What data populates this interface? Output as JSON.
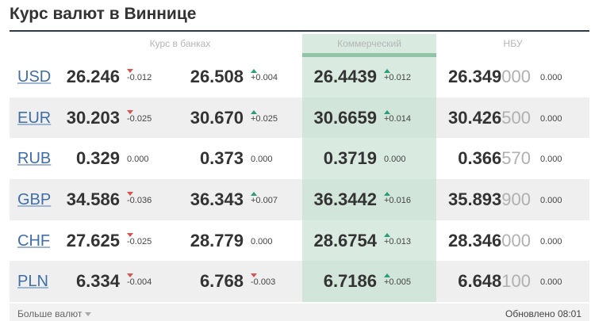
{
  "title": "Курс валют в Виннице",
  "headers": {
    "banks": "Курс в банках",
    "commercial": "Коммерческий",
    "nbu": "НБУ"
  },
  "rows": [
    {
      "code": "USD",
      "buy": "26.246",
      "buy_delta": "-0.012",
      "buy_dir": "down",
      "sell": "26.508",
      "sell_delta": "+0.004",
      "sell_dir": "up",
      "comm": "26.4439",
      "comm_delta": "+0.012",
      "comm_dir": "up",
      "nbu_main": "26.349",
      "nbu_tail": "000",
      "nbu_delta": "0.000"
    },
    {
      "code": "EUR",
      "buy": "30.203",
      "buy_delta": "-0.025",
      "buy_dir": "down",
      "sell": "30.670",
      "sell_delta": "+0.025",
      "sell_dir": "up",
      "comm": "30.6659",
      "comm_delta": "+0.014",
      "comm_dir": "up",
      "nbu_main": "30.426",
      "nbu_tail": "500",
      "nbu_delta": "0.000"
    },
    {
      "code": "RUB",
      "buy": "0.329",
      "buy_delta": "0.000",
      "buy_dir": "none",
      "sell": "0.373",
      "sell_delta": "0.000",
      "sell_dir": "none",
      "comm": "0.3719",
      "comm_delta": "0.000",
      "comm_dir": "none",
      "nbu_main": "0.366",
      "nbu_tail": "570",
      "nbu_delta": "0.000"
    },
    {
      "code": "GBP",
      "buy": "34.586",
      "buy_delta": "-0.036",
      "buy_dir": "down",
      "sell": "36.343",
      "sell_delta": "+0.007",
      "sell_dir": "up",
      "comm": "36.3442",
      "comm_delta": "+0.016",
      "comm_dir": "up",
      "nbu_main": "35.893",
      "nbu_tail": "900",
      "nbu_delta": "0.000"
    },
    {
      "code": "CHF",
      "buy": "27.625",
      "buy_delta": "-0.025",
      "buy_dir": "down",
      "sell": "28.779",
      "sell_delta": "0.000",
      "sell_dir": "none",
      "comm": "28.6754",
      "comm_delta": "+0.013",
      "comm_dir": "up",
      "nbu_main": "28.346",
      "nbu_tail": "000",
      "nbu_delta": "0.000"
    },
    {
      "code": "PLN",
      "buy": "6.334",
      "buy_delta": "-0.004",
      "buy_dir": "down",
      "sell": "6.768",
      "sell_delta": "-0.003",
      "sell_dir": "down",
      "comm": "6.7186",
      "comm_delta": "+0.005",
      "comm_dir": "up",
      "nbu_main": "6.648",
      "nbu_tail": "100",
      "nbu_delta": "0.000"
    }
  ],
  "footer": {
    "more": "Больше валют",
    "updated": "Обновлено 08:01"
  }
}
